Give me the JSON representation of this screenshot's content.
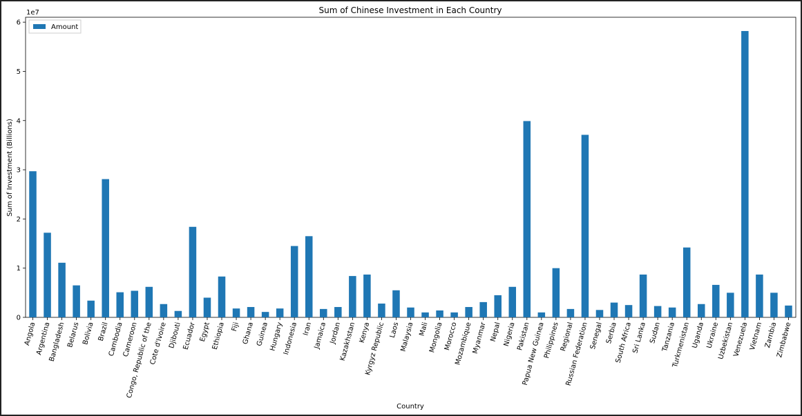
{
  "chart_data": {
    "type": "bar",
    "title": "Sum of Chinese Investment in Each Country",
    "xlabel": "Country",
    "ylabel": "Sum of Investment (Billions)",
    "y_offset_text": "1e7",
    "ylim": [
      0,
      6.1
    ],
    "yticks": [
      0,
      1,
      2,
      3,
      4,
      5,
      6
    ],
    "legend": {
      "position": "top-left"
    },
    "color": "#1f77b4",
    "series": [
      {
        "name": "Amount",
        "values": [
          2.97,
          1.72,
          1.11,
          0.65,
          0.34,
          2.81,
          0.51,
          0.54,
          0.62,
          0.27,
          0.13,
          1.84,
          0.4,
          0.83,
          0.18,
          0.21,
          0.11,
          0.18,
          1.45,
          1.65,
          0.17,
          0.21,
          0.84,
          0.87,
          0.28,
          0.55,
          0.2,
          0.1,
          0.14,
          0.1,
          0.21,
          0.31,
          0.45,
          0.62,
          3.99,
          0.1,
          1.0,
          0.17,
          3.71,
          0.15,
          0.3,
          0.25,
          0.87,
          0.23,
          0.2,
          1.42,
          0.27,
          0.66,
          0.5,
          5.82,
          0.87,
          0.5,
          0.24
        ]
      }
    ],
    "categories": [
      "Angola",
      "Argentina",
      "Bangladesh",
      "Belarus",
      "Bolivia",
      "Brazil",
      "Cambodia",
      "Cameroon",
      "Congo, Republic of the",
      "Cote d'Ivoire",
      "Djibouti",
      "Ecuador",
      "Egypt",
      "Ethiopia",
      "Fiji",
      "Ghana",
      "Guinea",
      "Hungary",
      "Indonesia",
      "Iran",
      "Jamaica",
      "Jordan",
      "Kazakhstan",
      "Kenya",
      "Kyrgyz Republic",
      "Laos",
      "Malaysia",
      "Mali",
      "Mongolia",
      "Morocco",
      "Mozambique",
      "Myanmar",
      "Nepal",
      "Nigeria",
      "Pakistan",
      "Papua New Guinea",
      "Philippines",
      "Regional",
      "Russian Federation",
      "Senegal",
      "Serbia",
      "South Africa",
      "Sri Lanka",
      "Sudan",
      "Tanzania",
      "Turkmenistan",
      "Uganda",
      "Ukraine",
      "Uzbekistan",
      "Venezuela",
      "Vietnam",
      "Zambia",
      "Zimbabwe"
    ]
  }
}
